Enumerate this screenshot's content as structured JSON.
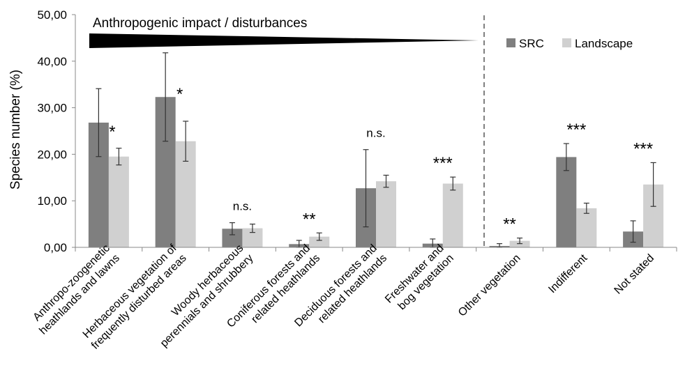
{
  "chart_data": {
    "type": "bar",
    "title": "",
    "xlabel": "",
    "ylabel": "Species number (%)",
    "ylim": [
      0,
      50
    ],
    "y_ticks": [
      "0,00",
      "10,00",
      "20,00",
      "30,00",
      "40,00",
      "50,00"
    ],
    "grid": false,
    "legend_position": "top-right",
    "categories": [
      [
        "Anthropo-zoogenetic",
        "heathlands and lawns"
      ],
      [
        "Herbaceous vegetation of",
        "frequently disturbed areas"
      ],
      [
        "Woody herbaceous",
        "perennials and shrubbery"
      ],
      [
        "Coniferous forests and",
        "related heathlands"
      ],
      [
        "Deciduous forests and",
        "related heathlands"
      ],
      [
        "Freshwater and",
        "bog vegetation"
      ],
      [
        "Other vegetation"
      ],
      [
        "Indifferent"
      ],
      [
        "Not stated"
      ]
    ],
    "series": [
      {
        "name": "SRC",
        "color": "#7f7f7f",
        "values": [
          26.8,
          32.3,
          4.0,
          0.7,
          12.7,
          0.8,
          0.3,
          19.4,
          3.4
        ],
        "errors": [
          7.3,
          9.5,
          1.3,
          0.8,
          8.3,
          1.0,
          0.5,
          2.9,
          2.3
        ]
      },
      {
        "name": "Landscape",
        "color": "#d0d0d0",
        "values": [
          19.5,
          22.8,
          4.1,
          2.3,
          14.2,
          13.7,
          1.4,
          8.4,
          13.5
        ],
        "errors": [
          1.8,
          4.3,
          0.9,
          0.8,
          1.3,
          1.4,
          0.6,
          1.1,
          4.7
        ]
      }
    ],
    "significance": [
      "*",
      "*",
      "n.s.",
      "**",
      "n.s.",
      "***",
      "**",
      "***",
      "***"
    ],
    "annotation": "Anthropogenic impact / disturbances"
  }
}
